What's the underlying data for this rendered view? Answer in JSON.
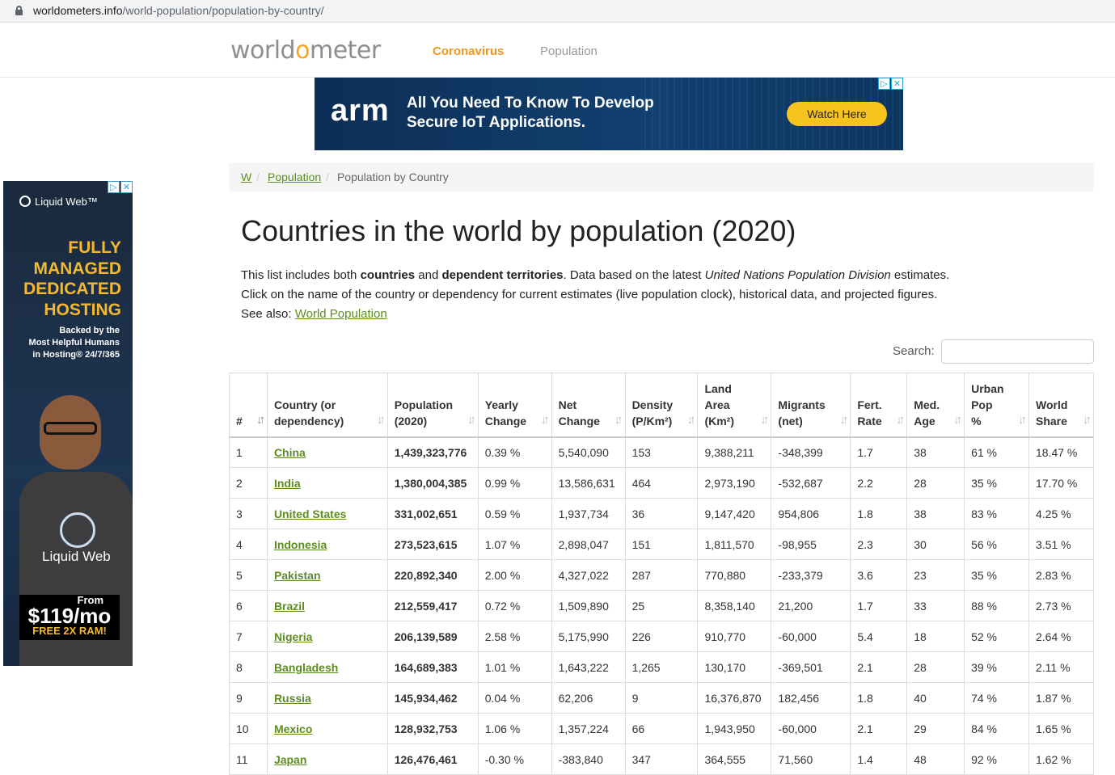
{
  "browser": {
    "url_host": "worldometers.info",
    "url_path": "/world-population/population-by-country/"
  },
  "header": {
    "logo_pre": "world",
    "logo_o": "o",
    "logo_post": "meter",
    "nav": [
      "Coronavirus",
      "Population"
    ],
    "accent_color": "#f0961e"
  },
  "top_ad": {
    "brand": "arm",
    "headline_line1": "All You Need To Know To Develop",
    "headline_line2": "Secure IoT Applications.",
    "cta": "Watch Here"
  },
  "side_ad": {
    "brand": "Liquid Web",
    "brand_tm": "™",
    "headline": [
      "FULLY",
      "MANAGED",
      "DEDICATED",
      "HOSTING"
    ],
    "subline": [
      "Backed by the",
      "Most Helpful Humans",
      "in Hosting® 24/7/365"
    ],
    "shirt_text": "Liquid Web",
    "price_from": "From",
    "price": "$119/mo",
    "promo": "FREE 2X RAM!"
  },
  "breadcrumb": [
    "W",
    "Population",
    "Population by Country"
  ],
  "page": {
    "title": "Countries in the world by population (2020)",
    "intro_1a": "This list includes both ",
    "intro_1b": "countries",
    "intro_1c": " and ",
    "intro_1d": "dependent territories",
    "intro_1e": ". Data based on the latest ",
    "intro_1f": "United Nations Population Division",
    "intro_1g": " estimates.",
    "intro_2": "Click on the name of the country or dependency for current estimates (live population clock), historical data, and projected figures.",
    "intro_3": "See also: ",
    "intro_3_link": "World Population"
  },
  "search": {
    "label": "Search:",
    "value": ""
  },
  "table": {
    "headers": [
      [
        "#"
      ],
      [
        "Country (or",
        "dependency)"
      ],
      [
        "Population",
        "(2020)"
      ],
      [
        "Yearly",
        "Change"
      ],
      [
        "Net",
        "Change"
      ],
      [
        "Density",
        "(P/Km²)"
      ],
      [
        "Land",
        "Area",
        "(Km²)"
      ],
      [
        "Migrants",
        "(net)"
      ],
      [
        "Fert.",
        "Rate"
      ],
      [
        "Med.",
        "Age"
      ],
      [
        "Urban",
        "Pop",
        "%"
      ],
      [
        "World",
        "Share"
      ]
    ],
    "rows": [
      [
        "1",
        "China",
        "1,439,323,776",
        "0.39 %",
        "5,540,090",
        "153",
        "9,388,211",
        "-348,399",
        "1.7",
        "38",
        "61 %",
        "18.47 %"
      ],
      [
        "2",
        "India",
        "1,380,004,385",
        "0.99 %",
        "13,586,631",
        "464",
        "2,973,190",
        "-532,687",
        "2.2",
        "28",
        "35 %",
        "17.70 %"
      ],
      [
        "3",
        "United States",
        "331,002,651",
        "0.59 %",
        "1,937,734",
        "36",
        "9,147,420",
        "954,806",
        "1.8",
        "38",
        "83 %",
        "4.25 %"
      ],
      [
        "4",
        "Indonesia",
        "273,523,615",
        "1.07 %",
        "2,898,047",
        "151",
        "1,811,570",
        "-98,955",
        "2.3",
        "30",
        "56 %",
        "3.51 %"
      ],
      [
        "5",
        "Pakistan",
        "220,892,340",
        "2.00 %",
        "4,327,022",
        "287",
        "770,880",
        "-233,379",
        "3.6",
        "23",
        "35 %",
        "2.83 %"
      ],
      [
        "6",
        "Brazil",
        "212,559,417",
        "0.72 %",
        "1,509,890",
        "25",
        "8,358,140",
        "21,200",
        "1.7",
        "33",
        "88 %",
        "2.73 %"
      ],
      [
        "7",
        "Nigeria",
        "206,139,589",
        "2.58 %",
        "5,175,990",
        "226",
        "910,770",
        "-60,000",
        "5.4",
        "18",
        "52 %",
        "2.64 %"
      ],
      [
        "8",
        "Bangladesh",
        "164,689,383",
        "1.01 %",
        "1,643,222",
        "1,265",
        "130,170",
        "-369,501",
        "2.1",
        "28",
        "39 %",
        "2.11 %"
      ],
      [
        "9",
        "Russia",
        "145,934,462",
        "0.04 %",
        "62,206",
        "9",
        "16,376,870",
        "182,456",
        "1.8",
        "40",
        "74 %",
        "1.87 %"
      ],
      [
        "10",
        "Mexico",
        "128,932,753",
        "1.06 %",
        "1,357,224",
        "66",
        "1,943,950",
        "-60,000",
        "2.1",
        "29",
        "84 %",
        "1.65 %"
      ],
      [
        "11",
        "Japan",
        "126,476,461",
        "-0.30 %",
        "-383,840",
        "347",
        "364,555",
        "71,560",
        "1.4",
        "48",
        "92 %",
        "1.62 %"
      ]
    ]
  }
}
